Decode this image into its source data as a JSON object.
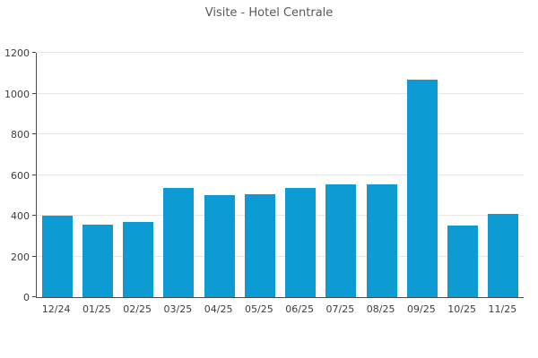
{
  "window": {
    "title": "Visite - Hotel Centrale",
    "background": "#ffffff"
  },
  "colors": {
    "bar": "#0e9bd4",
    "gridline": "#e6e6e6",
    "axis": "#4a4a4a",
    "title_text": "#595959",
    "tick_text": "#3d3d3d"
  },
  "chart_data": {
    "type": "bar",
    "title": "Visite - Hotel Centrale",
    "categories": [
      "12/24",
      "01/25",
      "02/25",
      "03/25",
      "04/25",
      "05/25",
      "06/25",
      "07/25",
      "08/25",
      "09/25",
      "10/25",
      "11/25"
    ],
    "values": [
      400,
      357,
      370,
      537,
      501,
      506,
      536,
      556,
      556,
      1068,
      352,
      409
    ],
    "xlabel": "",
    "ylabel": "",
    "ylim": [
      0,
      1200
    ],
    "yticks": [
      0,
      200,
      400,
      600,
      800,
      1000,
      1200
    ],
    "grid": true,
    "legend": false,
    "legend_position": "none"
  }
}
